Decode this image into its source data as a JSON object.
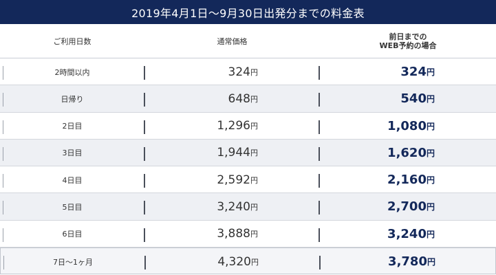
{
  "title": "2019年4月1日～9月30日出発分までの料金表",
  "columns": {
    "days": "ご利用日数",
    "normal": "通常価格",
    "web_line1": "前日までの",
    "web_line2": "WEB予約の場合"
  },
  "yen": "円",
  "rows": [
    {
      "label": "2時間以内",
      "normal": "324",
      "web": "324"
    },
    {
      "label": "日帰り",
      "normal": "648",
      "web": "540"
    },
    {
      "label": "2日目",
      "normal": "1,296",
      "web": "1,080"
    },
    {
      "label": "3日目",
      "normal": "1,944",
      "web": "1,620"
    },
    {
      "label": "4日目",
      "normal": "2,592",
      "web": "2,160"
    },
    {
      "label": "5日目",
      "normal": "3,240",
      "web": "2,700"
    },
    {
      "label": "6日目",
      "normal": "3,888",
      "web": "3,240"
    },
    {
      "label": "7日～1ヶ月",
      "normal": "4,320",
      "web": "3,780"
    }
  ],
  "colors": {
    "title_bg": "#13285a",
    "web_price": "#13285a"
  }
}
